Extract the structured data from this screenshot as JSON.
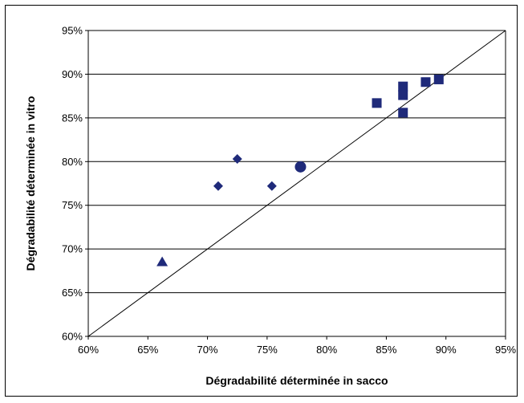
{
  "chart_data": {
    "type": "scatter",
    "xlabel": "Dégradabilité déterminée in sacco",
    "ylabel": "Dégradabilité déterminée in vitro",
    "xlim": [
      60,
      95
    ],
    "ylim": [
      60,
      95
    ],
    "x_ticks": [
      "60%",
      "65%",
      "70%",
      "75%",
      "80%",
      "85%",
      "90%",
      "95%"
    ],
    "y_ticks": [
      "60%",
      "65%",
      "70%",
      "75%",
      "80%",
      "85%",
      "90%",
      "95%"
    ],
    "grid": "horizontal",
    "legend": "none",
    "marker_color": "#1f2a7a",
    "reference_line": {
      "from": [
        60,
        60
      ],
      "to": [
        95,
        95
      ]
    },
    "series": [
      {
        "marker": "triangle",
        "points": [
          {
            "x": 66.2,
            "y": 68.5
          }
        ]
      },
      {
        "marker": "diamond",
        "points": [
          {
            "x": 70.9,
            "y": 77.2
          },
          {
            "x": 72.5,
            "y": 80.3
          },
          {
            "x": 75.4,
            "y": 77.2
          }
        ]
      },
      {
        "marker": "circle",
        "points": [
          {
            "x": 77.8,
            "y": 79.4
          }
        ]
      },
      {
        "marker": "square",
        "points": [
          {
            "x": 84.2,
            "y": 86.7
          },
          {
            "x": 86.4,
            "y": 88.6
          },
          {
            "x": 86.4,
            "y": 87.6
          },
          {
            "x": 86.4,
            "y": 85.6
          },
          {
            "x": 88.3,
            "y": 89.1
          },
          {
            "x": 89.4,
            "y": 89.4
          }
        ]
      }
    ]
  }
}
